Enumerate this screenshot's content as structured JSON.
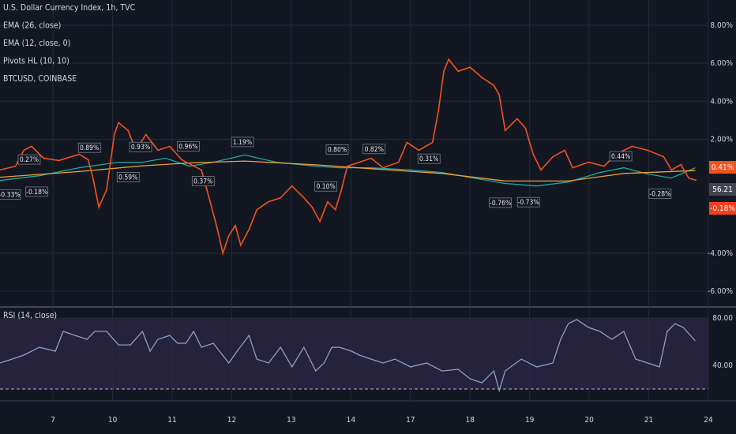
{
  "chart_data": [
    {
      "type": "line",
      "legend": [
        "U.S. Dollar Currency Index, 1h, TVC",
        "EMA (26, close)",
        "EMA (12, close, 0)",
        "Pivots HL (10, 10)",
        "BTCUSD, COINBASE"
      ],
      "xlim": [
        -0.89,
        11
      ],
      "ylim": [
        -6.83,
        9.33
      ],
      "yticks": [
        {
          "value": 8,
          "label": "8.00%"
        },
        {
          "value": 6,
          "label": "6.00%"
        },
        {
          "value": 4,
          "label": "4.00%"
        },
        {
          "value": 2,
          "label": "2.00%"
        },
        {
          "value": -4,
          "label": "-4.00%"
        },
        {
          "value": -6,
          "label": "-6.00%"
        }
      ],
      "grid": true,
      "series": [
        {
          "color": "#26a69a",
          "x": [
            -0.89,
            -0.23,
            0.44,
            1.1,
            1.5,
            1.89,
            2.29,
            2.69,
            3.22,
            3.75,
            4.41,
            4.81,
            5.34,
            6.0,
            6.53,
            7.06,
            7.59,
            8.12,
            8.65,
            9.18,
            9.58,
            9.98,
            10.38,
            10.78
          ],
          "values": [
            -0.17,
            0.08,
            0.5,
            0.79,
            0.79,
            1.0,
            0.58,
            0.79,
            1.17,
            0.79,
            0.58,
            0.5,
            0.5,
            0.38,
            0.25,
            -0.04,
            -0.33,
            -0.46,
            -0.25,
            0.25,
            0.5,
            0.17,
            -0.04,
            0.5
          ]
        },
        {
          "color": "#e8a33a",
          "x": [
            -0.89,
            0.44,
            1.5,
            2.29,
            3.22,
            4.41,
            5.34,
            6.53,
            7.59,
            8.65,
            9.58,
            10.78
          ],
          "values": [
            0.0,
            0.3,
            0.6,
            0.75,
            0.85,
            0.65,
            0.45,
            0.2,
            -0.2,
            -0.2,
            0.2,
            0.35
          ]
        },
        {
          "color": "#f4511e",
          "x": [
            -0.89,
            -0.63,
            -0.49,
            -0.36,
            -0.16,
            0.1,
            0.44,
            0.59,
            0.67,
            0.77,
            0.9,
            1.03,
            1.1,
            1.26,
            1.39,
            1.56,
            1.76,
            1.96,
            2.16,
            2.49,
            2.62,
            2.76,
            2.85,
            2.95,
            3.06,
            3.15,
            3.29,
            3.42,
            3.62,
            3.82,
            4.01,
            4.21,
            4.35,
            4.48,
            4.61,
            4.74,
            4.84,
            4.94,
            5.14,
            5.34,
            5.54,
            5.8,
            5.94,
            6.14,
            6.37,
            6.47,
            6.56,
            6.64,
            6.8,
            7.0,
            7.2,
            7.4,
            7.49,
            7.59,
            7.79,
            7.93,
            8.06,
            8.19,
            8.39,
            8.59,
            8.72,
            8.99,
            9.25,
            9.45,
            9.72,
            9.98,
            10.25,
            10.38,
            10.54,
            10.67,
            10.8
          ],
          "values": [
            0.38,
            0.58,
            1.42,
            1.63,
            1.0,
            0.88,
            1.21,
            0.92,
            -0.04,
            -1.58,
            -0.67,
            2.25,
            2.88,
            2.46,
            1.42,
            2.25,
            1.42,
            1.63,
            0.92,
            0.38,
            -1.08,
            -2.75,
            -4.0,
            -3.08,
            -2.54,
            -3.58,
            -2.75,
            -1.71,
            -1.29,
            -1.08,
            -0.46,
            -1.08,
            -1.58,
            -2.33,
            -1.29,
            -1.71,
            -0.67,
            0.58,
            0.79,
            1.0,
            0.5,
            0.79,
            1.83,
            1.42,
            1.83,
            3.5,
            5.58,
            6.21,
            5.58,
            5.79,
            5.25,
            4.83,
            4.33,
            2.46,
            3.08,
            2.58,
            1.21,
            0.38,
            1.08,
            1.42,
            0.5,
            0.79,
            0.58,
            1.21,
            1.63,
            1.42,
            1.08,
            0.38,
            0.67,
            -0.04,
            -0.17
          ]
        }
      ],
      "pivots": [
        {
          "x": -0.73,
          "value": -0.33,
          "label": "-0.33%"
        },
        {
          "x": -0.4,
          "value": 0.27,
          "label": "0.27%"
        },
        {
          "x": -0.27,
          "value": -0.18,
          "label": "-0.18%"
        },
        {
          "x": 0.61,
          "value": 0.89,
          "label": "0.89%"
        },
        {
          "x": 1.26,
          "value": 0.59,
          "label": "0.59%"
        },
        {
          "x": 1.47,
          "value": 0.93,
          "label": "0.93%"
        },
        {
          "x": 2.27,
          "value": 0.96,
          "label": "0.96%"
        },
        {
          "x": 2.52,
          "value": 0.37,
          "label": "0.37%"
        },
        {
          "x": 3.18,
          "value": 1.19,
          "label": "1.19%"
        },
        {
          "x": 4.58,
          "value": 0.1,
          "label": "0.10%"
        },
        {
          "x": 4.77,
          "value": 0.8,
          "label": "0.80%"
        },
        {
          "x": 5.39,
          "value": 0.82,
          "label": "0.82%"
        },
        {
          "x": 6.31,
          "value": 0.31,
          "label": "0.31%"
        },
        {
          "x": 7.51,
          "value": -0.76,
          "label": "-0.76%"
        },
        {
          "x": 7.98,
          "value": -0.73,
          "label": "-0.73%"
        },
        {
          "x": 9.53,
          "value": 0.44,
          "label": "0.44%"
        },
        {
          "x": 10.19,
          "value": -0.28,
          "label": "-0.28%"
        }
      ],
      "badges": [
        {
          "label": "0.41%",
          "color": "#f4511e"
        },
        {
          "label": "56.21",
          "color": "#434651"
        },
        {
          "label": "-0.18%",
          "color": "#f23f1e"
        }
      ]
    },
    {
      "type": "line",
      "legend": [
        "RSI (14, close)"
      ],
      "xlim": [
        -0.89,
        11
      ],
      "ylim": [
        10,
        88.67
      ],
      "yticks": [
        {
          "value": 80,
          "label": "80.00"
        },
        {
          "value": 40,
          "label": "40.00"
        }
      ],
      "bands": [
        20,
        80
      ],
      "xticks": [
        {
          "value": 0,
          "label": "7"
        },
        {
          "value": 1,
          "label": "10"
        },
        {
          "value": 2,
          "label": "11"
        },
        {
          "value": 3,
          "label": "12"
        },
        {
          "value": 4,
          "label": "13"
        },
        {
          "value": 5,
          "label": "14"
        },
        {
          "value": 6,
          "label": "17"
        },
        {
          "value": 7,
          "label": "18"
        },
        {
          "value": 8,
          "label": "19"
        },
        {
          "value": 9,
          "label": "20"
        },
        {
          "value": 10,
          "label": "21"
        },
        {
          "value": 11,
          "label": "24"
        }
      ],
      "series": [
        {
          "color": "#8e9ec7",
          "x": [
            -0.89,
            -0.69,
            -0.49,
            -0.23,
            0.04,
            0.17,
            0.37,
            0.57,
            0.7,
            0.9,
            1.1,
            1.3,
            1.5,
            1.63,
            1.76,
            1.96,
            2.09,
            2.23,
            2.36,
            2.49,
            2.69,
            2.95,
            3.09,
            3.29,
            3.42,
            3.62,
            3.82,
            4.01,
            4.21,
            4.41,
            4.55,
            4.68,
            4.81,
            5.01,
            5.14,
            5.34,
            5.54,
            5.74,
            6.0,
            6.27,
            6.53,
            6.8,
            7.0,
            7.2,
            7.4,
            7.49,
            7.59,
            7.86,
            8.12,
            8.39,
            8.52,
            8.65,
            8.79,
            8.99,
            9.18,
            9.38,
            9.58,
            9.78,
            9.98,
            10.18,
            10.31,
            10.44,
            10.58,
            10.78
          ],
          "values": [
            42.0,
            45.3,
            48.7,
            55.3,
            52.0,
            68.7,
            65.3,
            62.0,
            68.7,
            68.7,
            57.3,
            57.3,
            68.7,
            52.0,
            62.0,
            65.3,
            58.7,
            58.7,
            68.7,
            55.3,
            58.7,
            42.0,
            52.0,
            65.3,
            45.3,
            42.0,
            55.3,
            38.7,
            55.3,
            35.3,
            42.0,
            55.3,
            55.3,
            52.0,
            48.7,
            45.3,
            42.0,
            45.3,
            38.7,
            42.0,
            35.3,
            36.7,
            28.7,
            25.3,
            35.3,
            18.7,
            35.3,
            45.3,
            38.7,
            42.0,
            62.0,
            75.3,
            78.7,
            72.0,
            68.7,
            62.0,
            68.7,
            45.3,
            42.0,
            38.7,
            68.7,
            75.3,
            72.0,
            60.7
          ]
        }
      ]
    }
  ]
}
